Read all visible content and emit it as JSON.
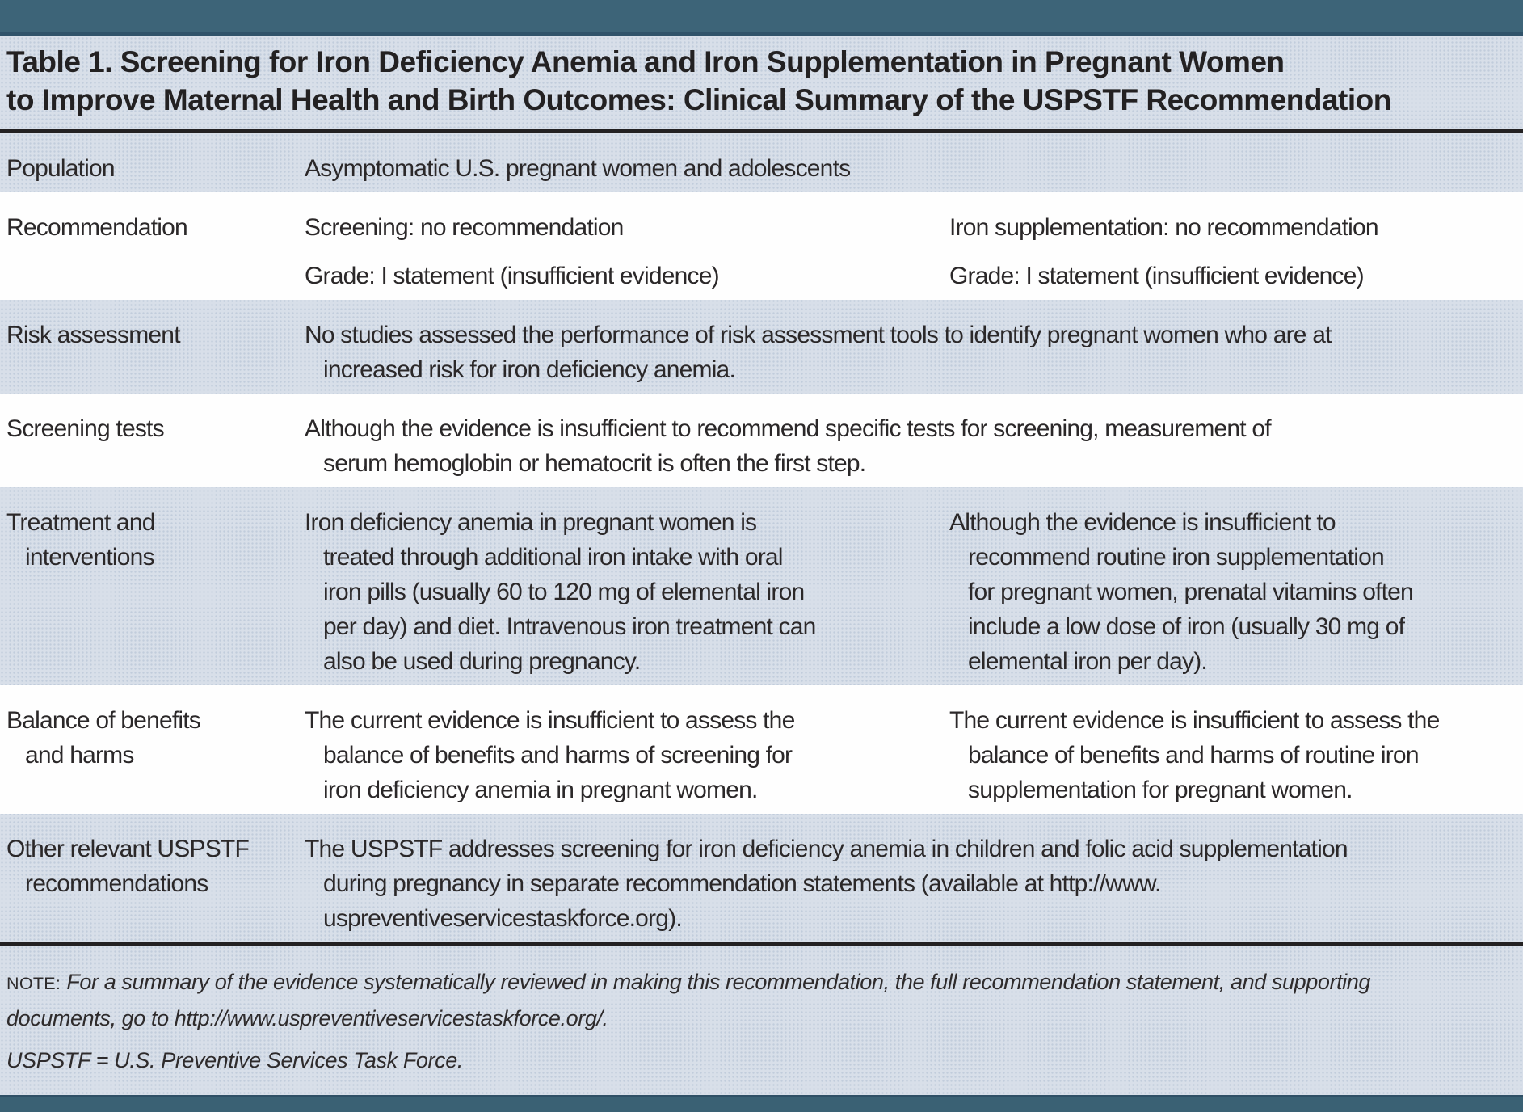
{
  "title": {
    "line1": "Table 1. Screening for Iron Deficiency Anemia and Iron Supplementation in Pregnant Women",
    "line2": "to Improve Maternal Health and Birth Outcomes: Clinical Summary of the USPSTF Recommendation"
  },
  "rows": [
    {
      "name": "Population",
      "label_lines": [
        "Population"
      ],
      "full_lines": [
        "Asymptomatic U.S. pregnant women and adolescents"
      ]
    },
    {
      "name": "Recommendation",
      "label_lines": [
        "Recommendation"
      ],
      "col1": [
        [
          "Screening: no recommendation"
        ],
        [
          "Grade: I statement (insufficient evidence)"
        ]
      ],
      "col2": [
        [
          "Iron supplementation: no recommendation"
        ],
        [
          "Grade: I statement (insufficient evidence)"
        ]
      ]
    },
    {
      "name": "Risk assessment",
      "label_lines": [
        "Risk assessment"
      ],
      "full_lines": [
        "No studies assessed the performance of risk assessment tools to identify pregnant women who are at",
        "increased risk for iron deficiency anemia."
      ]
    },
    {
      "name": "Screening tests",
      "label_lines": [
        "Screening tests"
      ],
      "full_lines": [
        "Although the evidence is insufficient to recommend specific tests for screening, measurement of",
        "serum hemoglobin or hematocrit is often the first step."
      ]
    },
    {
      "name": "Treatment and interventions",
      "label_lines": [
        "Treatment and",
        "interventions"
      ],
      "col1": [
        [
          "Iron deficiency anemia in pregnant women is",
          "treated through additional iron intake with oral",
          "iron pills (usually 60 to 120 mg of elemental iron",
          "per day) and diet. Intravenous iron treatment can",
          "also be used during pregnancy."
        ]
      ],
      "col2": [
        [
          "Although the evidence is insufficient to",
          "recommend routine iron supplementation",
          "for pregnant women, prenatal vitamins often",
          "include a low dose of iron (usually 30 mg of",
          "elemental iron per day)."
        ]
      ]
    },
    {
      "name": "Balance of benefits and harms",
      "label_lines": [
        "Balance of benefits",
        "and harms"
      ],
      "col1": [
        [
          "The current evidence is insufficient to assess the",
          "balance of benefits and harms of screening for",
          "iron deficiency anemia in pregnant women."
        ]
      ],
      "col2": [
        [
          "The current evidence is insufficient to assess the",
          "balance of benefits and harms of routine iron",
          "supplementation for pregnant women."
        ]
      ]
    },
    {
      "name": "Other relevant USPSTF recommendations",
      "label_lines": [
        "Other relevant USPSTF",
        "recommendations"
      ],
      "full_lines": [
        "The USPSTF addresses screening for iron deficiency anemia in children and folic acid supplementation",
        "during pregnancy in separate recommendation statements (available at http://www.",
        "uspreventiveservicestaskforce.org)."
      ]
    }
  ],
  "footnotes": {
    "note_label": "NOTE:",
    "note_line1": "For a summary of the evidence systematically reviewed in making this recommendation, the full recommendation statement, and supporting",
    "note_line2": "documents, go to http://www.uspreventiveservicestaskforce.org/.",
    "abbreviation": "USPSTF = U.S. Preventive Services Task Force."
  },
  "colors": {
    "band": "#3d6478",
    "band_edge": "#30536a",
    "shaded_row": "#d8dfe9",
    "white_row": "#fefefe",
    "rule": "#232122",
    "text": "#2b2829"
  }
}
